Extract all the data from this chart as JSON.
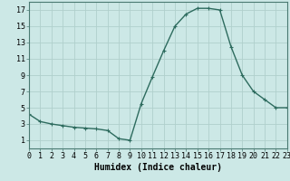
{
  "x": [
    0,
    1,
    2,
    3,
    4,
    5,
    6,
    7,
    8,
    9,
    10,
    11,
    12,
    13,
    14,
    15,
    16,
    17,
    18,
    19,
    20,
    21,
    22,
    23
  ],
  "y": [
    4.2,
    3.3,
    3.0,
    2.8,
    2.6,
    2.5,
    2.4,
    2.2,
    1.2,
    1.0,
    5.5,
    8.8,
    12.0,
    15.0,
    16.5,
    17.2,
    17.2,
    17.0,
    12.5,
    9.0,
    7.0,
    6.0,
    5.0,
    5.0
  ],
  "xlim": [
    0,
    23
  ],
  "ylim": [
    0,
    18
  ],
  "yticks": [
    1,
    3,
    5,
    7,
    9,
    11,
    13,
    15,
    17
  ],
  "xticks": [
    0,
    1,
    2,
    3,
    4,
    5,
    6,
    7,
    8,
    9,
    10,
    11,
    12,
    13,
    14,
    15,
    16,
    17,
    18,
    19,
    20,
    21,
    22,
    23
  ],
  "xlabel": "Humidex (Indice chaleur)",
  "line_color": "#2d6b5e",
  "bg_color": "#cce8e6",
  "grid_color": "#b0d0cc",
  "marker": "+",
  "marker_size": 3,
  "line_width": 1.0,
  "xlabel_fontsize": 7,
  "tick_fontsize": 6,
  "spine_color": "#4a7a72"
}
